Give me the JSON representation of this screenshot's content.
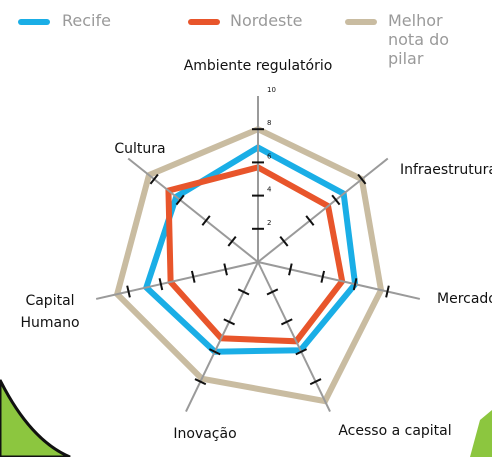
{
  "chart_data": {
    "type": "radar",
    "categories": [
      "Ambiente regulatório",
      "Infraestrutura",
      "Mercado",
      "Acesso a capital",
      "Inovação",
      "Capital Humano",
      "Cultura"
    ],
    "series": [
      {
        "name": "Recife",
        "color": "#1aaee6",
        "values": [
          6.9,
          6.6,
          6.0,
          5.9,
          6.0,
          6.9,
          6.3
        ]
      },
      {
        "name": "Nordeste",
        "color": "#e8552b",
        "values": [
          5.7,
          5.4,
          5.2,
          5.3,
          5.1,
          5.4,
          6.9
        ]
      },
      {
        "name": "Melhor nota do pilar",
        "color": "#c9bca1",
        "values": [
          8.0,
          8.0,
          7.6,
          9.3,
          7.8,
          8.7,
          8.4
        ]
      }
    ],
    "rlim": [
      0,
      10
    ],
    "rticks": [
      2,
      4,
      6,
      8,
      10
    ]
  }
}
